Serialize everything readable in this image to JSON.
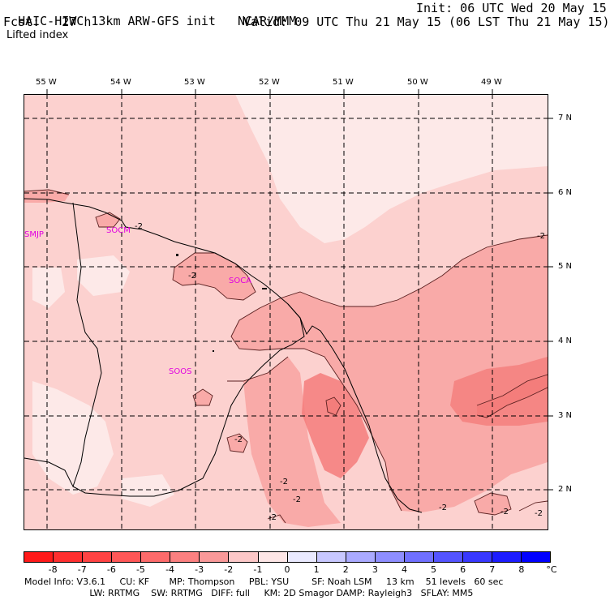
{
  "header": {
    "model": "HAIC-HIWC 13km ARW-GFS init",
    "org": "NCAR/MMM",
    "init": "Init: 06 UTC Wed 20 May 15",
    "fcst": "Fcst:   27 h",
    "valid": "Valid: 09 UTC Thu 21 May 15 (06 LST Thu 21 May 15)",
    "field": "Lifted index"
  },
  "map": {
    "lon_labels": [
      "55 W",
      "54 W",
      "53 W",
      "52 W",
      "51 W",
      "50 W",
      "49 W"
    ],
    "lat_labels": [
      "7 N",
      "6 N",
      "5 N",
      "4 N",
      "3 N",
      "2 N"
    ],
    "stations": [
      "SMJP",
      "SOCM",
      "SOCA",
      "SOOS"
    ],
    "contour_labels": [
      "-2",
      "-2",
      "-2",
      "-2",
      "-2",
      "-2",
      "-2",
      "-2",
      "-2",
      "-2"
    ],
    "colors": {
      "very_light": "#fde9e8",
      "light": "#fcd1cf",
      "medium": "#f9aaa8",
      "dark": "#f47d7b"
    }
  },
  "colorbar": {
    "ticks": [
      "-8",
      "-7",
      "-6",
      "-5",
      "-4",
      "-3",
      "-2",
      "-1",
      "0",
      "1",
      "2",
      "3",
      "4",
      "5",
      "6",
      "7",
      "8"
    ],
    "unit": "°C",
    "colors": [
      "#ff1a1a",
      "#ff2f2f",
      "#ff4343",
      "#ff5757",
      "#fd6b6b",
      "#fb8080",
      "#f99999",
      "#fcc8c8",
      "#fde6e6",
      "#eaeaff",
      "#c8c8ff",
      "#aaaaff",
      "#8e8eff",
      "#7070ff",
      "#5454ff",
      "#3838ff",
      "#1c1cff",
      "#0000ff"
    ]
  },
  "footer": {
    "line1": "Model Info: V3.6.1     CU: KF       MP: Thompson     PBL: YSU        SF: Noah LSM     13 km    51 levels   60 sec",
    "line2": "                       LW: RRTMG    SW: RRTMG   DIFF: full     KM: 2D Smagor DAMP: Rayleigh3   SFLAY: MM5"
  }
}
